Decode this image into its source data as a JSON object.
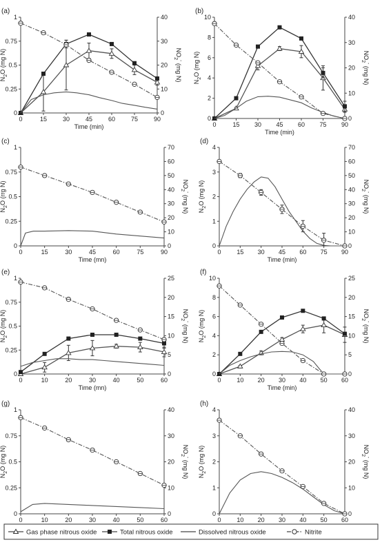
{
  "legend": {
    "items": [
      {
        "key": "gas",
        "label": "Gas phase nitrous oxide"
      },
      {
        "key": "total",
        "label": "Total nitrous oxide"
      },
      {
        "key": "dissolved",
        "label": "Dissolved nitrous oxide"
      },
      {
        "key": "nitrite",
        "label": "Nitrite"
      }
    ]
  },
  "chart_data": [
    {
      "type": "line",
      "panel_label": "(a)",
      "xlabel": "Time (min)",
      "ylabel_left": "N2O (mg N)",
      "ylabel_right": "NO2- (mg N)",
      "x_ticks": [
        0,
        15,
        30,
        45,
        60,
        75,
        90
      ],
      "xlim": [
        0,
        90
      ],
      "ylim_left": [
        0,
        1
      ],
      "y_ticks_left": [
        "0",
        "0.25",
        "0.5",
        "0.75",
        "1"
      ],
      "ylim_right": [
        0,
        40
      ],
      "y_ticks_right": [
        "0",
        "10",
        "20",
        "30",
        "40"
      ],
      "series": [
        {
          "key": "gas",
          "axis": "left",
          "x": [
            0,
            15,
            30,
            45,
            60,
            75,
            90
          ],
          "y": [
            0,
            0.22,
            0.5,
            0.65,
            0.62,
            0.45,
            0.32
          ],
          "err": [
            0,
            0.2,
            0.26,
            0.08,
            0.05,
            0.05,
            0.03
          ]
        },
        {
          "key": "total",
          "axis": "left",
          "x": [
            0,
            15,
            30,
            45,
            60,
            75,
            90
          ],
          "y": [
            0,
            0.41,
            0.72,
            0.82,
            0.72,
            0.52,
            0.36
          ],
          "err": [
            0,
            0,
            0.04,
            0,
            0,
            0,
            0
          ]
        },
        {
          "key": "dissolved",
          "axis": "left",
          "x": [
            0,
            7,
            15,
            22,
            30,
            37,
            45,
            52,
            60,
            67,
            75,
            82,
            90
          ],
          "y": [
            0,
            0.14,
            0.19,
            0.21,
            0.22,
            0.21,
            0.19,
            0.16,
            0.13,
            0.1,
            0.08,
            0.06,
            0.04
          ]
        },
        {
          "key": "nitrite",
          "axis": "right",
          "x": [
            0,
            15,
            30,
            45,
            60,
            75,
            90
          ],
          "y": [
            37.5,
            33.5,
            28.5,
            22,
            17,
            12,
            6.5
          ]
        }
      ]
    },
    {
      "type": "line",
      "panel_label": "(b)",
      "xlabel": "Time (min)",
      "ylabel_left": "N2O (mg N)",
      "ylabel_right": "NO2- (mg N)",
      "x_ticks": [
        0,
        15,
        30,
        45,
        60,
        75,
        90
      ],
      "xlim": [
        0,
        90
      ],
      "ylim_left": [
        0,
        10
      ],
      "y_ticks_left": [
        "0",
        "2",
        "4",
        "6",
        "8",
        "10"
      ],
      "ylim_right": [
        0,
        40
      ],
      "y_ticks_right": [
        "0",
        "10",
        "20",
        "30",
        "40"
      ],
      "series": [
        {
          "key": "gas",
          "axis": "left",
          "x": [
            0,
            15,
            30,
            45,
            60,
            75,
            90
          ],
          "y": [
            0,
            1,
            5.2,
            6.9,
            6.6,
            4,
            0.9
          ],
          "err": [
            0,
            0.1,
            0.4,
            0.2,
            0.6,
            1.2,
            0.3
          ]
        },
        {
          "key": "total",
          "axis": "left",
          "x": [
            0,
            15,
            30,
            45,
            60,
            75,
            90
          ],
          "y": [
            0,
            2,
            7.1,
            9,
            7.9,
            4.5,
            1.2
          ],
          "err": [
            0,
            0,
            0,
            0,
            0,
            0.5,
            0.5
          ]
        },
        {
          "key": "dissolved",
          "axis": "left",
          "x": [
            0,
            7,
            15,
            22,
            30,
            37,
            45,
            52,
            60,
            67,
            75,
            82,
            90
          ],
          "y": [
            0,
            0.3,
            1,
            1.7,
            2.15,
            2.2,
            2.1,
            1.85,
            1.55,
            1.05,
            0.6,
            0.25,
            0
          ]
        },
        {
          "key": "nitrite",
          "axis": "right",
          "x": [
            0,
            15,
            30,
            45,
            60,
            75,
            90
          ],
          "y": [
            37.5,
            29,
            22,
            14.5,
            8.5,
            2,
            0
          ]
        }
      ]
    },
    {
      "type": "line",
      "panel_label": "(c)",
      "xlabel": "Time (mn)",
      "ylabel_left": "N2O (rrg N)",
      "ylabel_right": "NO2- (mg N)",
      "x_ticks": [
        0,
        15,
        30,
        45,
        60,
        75,
        90
      ],
      "xlim": [
        0,
        90
      ],
      "ylim_left": [
        0,
        1
      ],
      "y_ticks_left": [
        "0",
        "0.25",
        "0.5",
        "0.75",
        "1"
      ],
      "ylim_right": [
        0,
        70
      ],
      "y_ticks_right": [
        "0",
        "10",
        "20",
        "30",
        "40",
        "50",
        "60",
        "70"
      ],
      "series": [
        {
          "key": "dissolved",
          "axis": "left",
          "x": [
            0,
            3,
            8,
            15,
            30,
            45,
            60,
            75,
            90
          ],
          "y": [
            0,
            0.13,
            0.15,
            0.15,
            0.155,
            0.15,
            0.12,
            0.1,
            0.08
          ]
        },
        {
          "key": "nitrite",
          "axis": "right",
          "x": [
            0,
            15,
            30,
            45,
            60,
            75,
            90
          ],
          "y": [
            56,
            50,
            44,
            38,
            31,
            24,
            17
          ]
        }
      ]
    },
    {
      "type": "line",
      "panel_label": "(d)",
      "xlabel": "Time (min)",
      "ylabel_left": "N2O (mg N)",
      "ylabel_right": "NO2- (mg N)",
      "x_ticks": [
        0,
        15,
        30,
        45,
        60,
        75,
        90
      ],
      "xlim": [
        0,
        90
      ],
      "ylim_left": [
        0,
        4
      ],
      "y_ticks_left": [
        "0",
        "1",
        "2",
        "3",
        "4"
      ],
      "ylim_right": [
        0,
        70
      ],
      "y_ticks_right": [
        "0",
        "10",
        "20",
        "30",
        "40",
        "50",
        "60",
        "70"
      ],
      "series": [
        {
          "key": "dissolved",
          "axis": "left",
          "x": [
            0,
            5,
            10,
            15,
            20,
            25,
            30,
            35,
            40,
            45,
            50,
            55,
            60,
            65,
            70,
            75,
            80,
            90
          ],
          "y": [
            0,
            0.8,
            1.4,
            1.9,
            2.3,
            2.6,
            2.8,
            2.75,
            2.4,
            1.9,
            1.4,
            1,
            0.6,
            0.3,
            0.1,
            0.02,
            0,
            0
          ]
        },
        {
          "key": "nitrite",
          "axis": "right",
          "x": [
            0,
            15,
            30,
            45,
            60,
            75,
            90
          ],
          "y": [
            60,
            50,
            38,
            26,
            14,
            4,
            0
          ],
          "err": [
            0,
            1.5,
            2,
            3,
            4,
            5,
            0
          ]
        }
      ]
    },
    {
      "type": "line",
      "panel_label": "(e)",
      "xlabel": "Time (mn)",
      "ylabel_left": "N2O (mg N)",
      "ylabel_right": "NO2- (mg N)",
      "x_ticks": [
        0,
        10,
        20,
        30,
        40,
        50,
        60
      ],
      "xlim": [
        0,
        60
      ],
      "ylim_left": [
        0,
        1
      ],
      "y_ticks_left": [
        "0",
        "0.25",
        "0.5",
        "0.75",
        "1"
      ],
      "ylim_right": [
        0,
        25
      ],
      "y_ticks_right": [
        "0",
        "5",
        "10",
        "15",
        "20",
        "25"
      ],
      "series": [
        {
          "key": "gas",
          "axis": "left",
          "x": [
            0,
            10,
            20,
            30,
            40,
            50,
            60
          ],
          "y": [
            0,
            0.07,
            0.22,
            0.27,
            0.29,
            0.28,
            0.23
          ],
          "err": [
            0,
            0.05,
            0.08,
            0.08,
            0.02,
            0.05,
            0.05
          ]
        },
        {
          "key": "total",
          "axis": "left",
          "x": [
            0,
            10,
            20,
            30,
            40,
            50,
            60
          ],
          "y": [
            0.02,
            0.21,
            0.37,
            0.41,
            0.41,
            0.37,
            0.32
          ],
          "err": [
            0,
            0,
            0,
            0,
            0,
            0,
            0.05
          ]
        },
        {
          "key": "dissolved",
          "axis": "left",
          "x": [
            0,
            5,
            10,
            15,
            20,
            25,
            30,
            35,
            40,
            45,
            50,
            55,
            60
          ],
          "y": [
            0.08,
            0.12,
            0.14,
            0.16,
            0.16,
            0.15,
            0.15,
            0.14,
            0.13,
            0.12,
            0.11,
            0.1,
            0.09
          ]
        },
        {
          "key": "nitrite",
          "axis": "right",
          "x": [
            0,
            10,
            20,
            30,
            40,
            50,
            60
          ],
          "y": [
            24,
            22.5,
            19.5,
            17,
            14,
            11.5,
            9
          ]
        }
      ]
    },
    {
      "type": "line",
      "panel_label": "(f)",
      "xlabel": "Time (min)",
      "ylabel_left": "N2O (mg N)",
      "ylabel_right": "NO2- (mg N)",
      "x_ticks": [
        0,
        10,
        20,
        30,
        40,
        50,
        60
      ],
      "xlim": [
        0,
        60
      ],
      "ylim_left": [
        0,
        10
      ],
      "y_ticks_left": [
        "0",
        "2",
        "4",
        "6",
        "8",
        "10"
      ],
      "ylim_right": [
        0,
        25
      ],
      "y_ticks_right": [
        "0",
        "5",
        "10",
        "15",
        "20",
        "25"
      ],
      "series": [
        {
          "key": "gas",
          "axis": "left",
          "x": [
            0,
            10,
            20,
            30,
            40,
            50,
            60
          ],
          "y": [
            0,
            0.8,
            2.2,
            3.6,
            4.7,
            5.1,
            4.1
          ],
          "err": [
            0,
            0.1,
            0.2,
            0.2,
            0.4,
            0.8,
            0.8
          ]
        },
        {
          "key": "total",
          "axis": "left",
          "x": [
            0,
            10,
            20,
            30,
            40,
            50,
            60
          ],
          "y": [
            0,
            2.1,
            4.4,
            5.9,
            6.6,
            5.8,
            4.2
          ],
          "err": [
            0,
            0,
            0,
            0,
            0,
            0,
            0
          ]
        },
        {
          "key": "dissolved",
          "axis": "left",
          "x": [
            0,
            5,
            10,
            15,
            20,
            25,
            30,
            35,
            40,
            45,
            48,
            50,
            55,
            60
          ],
          "y": [
            0,
            0.9,
            1.4,
            1.8,
            2.1,
            2.3,
            2.35,
            2.3,
            2,
            1.3,
            0.5,
            0,
            0,
            0
          ]
        },
        {
          "key": "nitrite",
          "axis": "right",
          "x": [
            0,
            10,
            20,
            30,
            40,
            50,
            60
          ],
          "y": [
            23,
            18,
            13,
            8,
            3.5,
            0,
            0
          ]
        }
      ]
    },
    {
      "type": "line",
      "panel_label": "(g)",
      "xlabel": "Time (min)",
      "ylabel_left": "N2O (mg N)",
      "ylabel_right": "NO2- (mg N)",
      "x_ticks": [
        0,
        10,
        20,
        30,
        40,
        50,
        60
      ],
      "xlim": [
        0,
        60
      ],
      "ylim_left": [
        0,
        1
      ],
      "y_ticks_left": [
        "0",
        "0.25",
        "0.5",
        "0.75",
        "1"
      ],
      "ylim_right": [
        0,
        40
      ],
      "y_ticks_right": [
        "0",
        "10",
        "20",
        "30",
        "40"
      ],
      "series": [
        {
          "key": "dissolved",
          "axis": "left",
          "x": [
            0,
            5,
            10,
            20,
            30,
            40,
            50,
            60
          ],
          "y": [
            0.02,
            0.09,
            0.1,
            0.09,
            0.08,
            0.07,
            0.06,
            0.05
          ]
        },
        {
          "key": "nitrite",
          "axis": "right",
          "x": [
            0,
            10,
            20,
            30,
            40,
            50,
            60
          ],
          "y": [
            37,
            33,
            28.5,
            24.5,
            20,
            15.5,
            11
          ]
        }
      ]
    },
    {
      "type": "line",
      "panel_label": "(h)",
      "xlabel": "Time (min)",
      "ylabel_left": "N2O (mg N)",
      "ylabel_right": "NO2- (mg N)",
      "x_ticks": [
        0,
        10,
        20,
        30,
        40,
        50,
        60
      ],
      "xlim": [
        0,
        60
      ],
      "ylim_left": [
        0,
        4
      ],
      "y_ticks_left": [
        "0",
        "1",
        "2",
        "3",
        "4"
      ],
      "ylim_right": [
        0,
        40
      ],
      "y_ticks_right": [
        "0",
        "10",
        "20",
        "30",
        "40"
      ],
      "series": [
        {
          "key": "dissolved",
          "axis": "left",
          "x": [
            0,
            5,
            10,
            15,
            20,
            25,
            30,
            35,
            40,
            45,
            50,
            55,
            60
          ],
          "y": [
            0,
            0.8,
            1.3,
            1.55,
            1.62,
            1.55,
            1.4,
            1.2,
            0.95,
            0.65,
            0.35,
            0.12,
            0
          ]
        },
        {
          "key": "nitrite",
          "axis": "right",
          "x": [
            0,
            10,
            20,
            30,
            40,
            50,
            60
          ],
          "y": [
            36,
            30,
            23,
            16.5,
            10.5,
            4,
            0
          ]
        }
      ]
    }
  ]
}
